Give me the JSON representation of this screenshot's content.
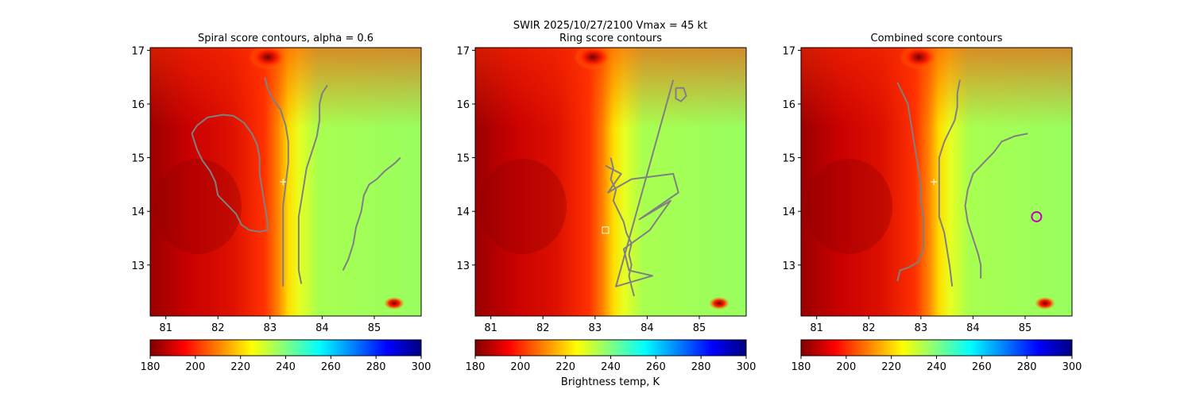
{
  "suptitle": "SWIR  2025/10/27/2100    Vmax = 45 kt",
  "colorbar_label": "Brightness temp, K",
  "colormap": [
    "#800000",
    "#ff0000",
    "#ff8000",
    "#ffff00",
    "#80ff80",
    "#00ffff",
    "#0080ff",
    "#0000ff",
    "#000080"
  ],
  "contour_color": "#808080",
  "chart_data": [
    {
      "type": "heatmap",
      "title": "Spiral score contours, alpha =  0.6",
      "xlim": [
        80.7,
        85.9
      ],
      "ylim": [
        12.05,
        17.05
      ],
      "xticks": [
        "81",
        "82",
        "83",
        "84",
        "85"
      ],
      "yticks": [
        "13",
        "14",
        "15",
        "16",
        "17"
      ],
      "colorbar": {
        "range": [
          180,
          300
        ],
        "ticks": [
          "180",
          "200",
          "220",
          "240",
          "260",
          "280",
          "300"
        ]
      },
      "contours": [
        [
          [
            81.5,
            15.45
          ],
          [
            81.6,
            15.6
          ],
          [
            81.8,
            15.75
          ],
          [
            82.1,
            15.8
          ],
          [
            82.3,
            15.78
          ],
          [
            82.5,
            15.65
          ],
          [
            82.65,
            15.45
          ],
          [
            82.75,
            15.25
          ],
          [
            82.8,
            15.0
          ],
          [
            82.8,
            14.7
          ],
          [
            82.85,
            14.4
          ],
          [
            82.9,
            14.1
          ],
          [
            82.95,
            13.8
          ],
          [
            82.95,
            13.65
          ],
          [
            82.8,
            13.62
          ],
          [
            82.6,
            13.65
          ],
          [
            82.45,
            13.75
          ],
          [
            82.35,
            13.95
          ],
          [
            82.2,
            14.1
          ],
          [
            82.0,
            14.3
          ],
          [
            81.95,
            14.55
          ],
          [
            81.85,
            14.75
          ],
          [
            81.7,
            14.95
          ],
          [
            81.6,
            15.15
          ],
          [
            81.5,
            15.45
          ]
        ],
        [
          [
            82.9,
            16.5
          ],
          [
            82.95,
            16.3
          ],
          [
            83.05,
            16.1
          ],
          [
            83.2,
            15.9
          ],
          [
            83.3,
            15.6
          ],
          [
            83.35,
            15.3
          ],
          [
            83.35,
            14.9
          ],
          [
            83.3,
            14.5
          ],
          [
            83.25,
            14.1
          ],
          [
            83.25,
            13.7
          ],
          [
            83.25,
            13.3
          ],
          [
            83.25,
            12.9
          ],
          [
            83.25,
            12.6
          ]
        ],
        [
          [
            84.1,
            16.35
          ],
          [
            84.0,
            16.2
          ],
          [
            83.95,
            16.0
          ],
          [
            83.95,
            15.7
          ],
          [
            83.9,
            15.4
          ],
          [
            83.8,
            15.1
          ],
          [
            83.7,
            14.8
          ],
          [
            83.65,
            14.5
          ],
          [
            83.6,
            14.2
          ],
          [
            83.55,
            13.9
          ],
          [
            83.55,
            13.6
          ],
          [
            83.55,
            13.2
          ],
          [
            83.55,
            12.9
          ],
          [
            83.6,
            12.65
          ]
        ],
        [
          [
            85.5,
            15.0
          ],
          [
            85.4,
            14.9
          ],
          [
            85.2,
            14.75
          ],
          [
            85.05,
            14.6
          ],
          [
            84.9,
            14.5
          ],
          [
            84.8,
            14.3
          ],
          [
            84.75,
            14.0
          ],
          [
            84.65,
            13.7
          ],
          [
            84.6,
            13.4
          ],
          [
            84.5,
            13.1
          ],
          [
            84.4,
            12.9
          ]
        ]
      ],
      "markers": [
        {
          "shape": "plus",
          "x": 83.25,
          "y": 14.55,
          "color": "#ffffff"
        }
      ]
    },
    {
      "type": "heatmap",
      "title": "Ring score contours",
      "xlim": [
        80.7,
        85.9
      ],
      "ylim": [
        12.05,
        17.05
      ],
      "xticks": [
        "81",
        "82",
        "83",
        "84",
        "85"
      ],
      "yticks": [
        "13",
        "14",
        "15",
        "16",
        "17"
      ],
      "colorbar": {
        "range": [
          180,
          300
        ],
        "ticks": [
          "180",
          "200",
          "220",
          "240",
          "260",
          "280",
          "300"
        ]
      },
      "contours": [
        [
          [
            83.3,
            15.0
          ],
          [
            83.35,
            14.8
          ],
          [
            83.3,
            14.6
          ],
          [
            83.4,
            14.4
          ],
          [
            83.35,
            14.2
          ],
          [
            83.45,
            14.0
          ],
          [
            83.55,
            13.8
          ],
          [
            83.6,
            13.6
          ],
          [
            83.7,
            13.4
          ],
          [
            83.65,
            13.2
          ],
          [
            83.7,
            13.0
          ],
          [
            83.65,
            12.8
          ],
          [
            83.7,
            12.6
          ],
          [
            83.75,
            12.42
          ]
        ],
        [
          [
            84.55,
            16.3
          ],
          [
            84.7,
            16.3
          ],
          [
            84.75,
            16.15
          ],
          [
            84.65,
            16.05
          ],
          [
            84.55,
            16.1
          ],
          [
            84.55,
            16.3
          ]
        ],
        [
          [
            83.2,
            14.85
          ],
          [
            83.5,
            14.7
          ],
          [
            83.25,
            14.35
          ],
          [
            83.7,
            14.6
          ],
          [
            84.5,
            14.7
          ],
          [
            84.6,
            14.35
          ],
          [
            83.85,
            13.85
          ],
          [
            84.45,
            14.2
          ],
          [
            84.05,
            13.65
          ],
          [
            83.55,
            13.3
          ],
          [
            83.65,
            12.9
          ],
          [
            84.1,
            12.8
          ],
          [
            83.4,
            12.6
          ],
          [
            84.5,
            16.45
          ]
        ]
      ],
      "markers": [
        {
          "shape": "square",
          "x": 83.2,
          "y": 13.65,
          "color": "#ffffff"
        }
      ]
    },
    {
      "type": "heatmap",
      "title": "Combined score contours",
      "xlim": [
        80.7,
        85.9
      ],
      "ylim": [
        12.05,
        17.05
      ],
      "xticks": [
        "81",
        "82",
        "83",
        "84",
        "85"
      ],
      "yticks": [
        "13",
        "14",
        "15",
        "16",
        "17"
      ],
      "colorbar": {
        "range": [
          180,
          300
        ],
        "ticks": [
          "180",
          "200",
          "220",
          "240",
          "260",
          "280",
          "300"
        ]
      },
      "contours": [
        [
          [
            82.55,
            16.4
          ],
          [
            82.65,
            16.2
          ],
          [
            82.75,
            16.0
          ],
          [
            82.8,
            15.7
          ],
          [
            82.85,
            15.4
          ],
          [
            82.9,
            15.1
          ],
          [
            82.95,
            14.8
          ],
          [
            83.0,
            14.5
          ],
          [
            83.0,
            14.2
          ],
          [
            83.05,
            13.9
          ],
          [
            83.05,
            13.6
          ],
          [
            83.05,
            13.3
          ],
          [
            82.95,
            13.05
          ],
          [
            82.75,
            12.95
          ],
          [
            82.6,
            12.9
          ],
          [
            82.55,
            12.7
          ]
        ],
        [
          [
            83.75,
            16.45
          ],
          [
            83.7,
            16.2
          ],
          [
            83.7,
            15.95
          ],
          [
            83.65,
            15.7
          ],
          [
            83.55,
            15.5
          ],
          [
            83.45,
            15.3
          ],
          [
            83.35,
            15.0
          ],
          [
            83.35,
            14.7
          ],
          [
            83.35,
            14.3
          ],
          [
            83.35,
            13.9
          ],
          [
            83.45,
            13.6
          ],
          [
            83.5,
            13.3
          ],
          [
            83.55,
            13.0
          ],
          [
            83.6,
            12.6
          ]
        ],
        [
          [
            85.05,
            15.45
          ],
          [
            84.8,
            15.4
          ],
          [
            84.55,
            15.3
          ],
          [
            84.4,
            15.1
          ],
          [
            84.2,
            14.9
          ],
          [
            84.0,
            14.7
          ],
          [
            83.9,
            14.4
          ],
          [
            83.85,
            14.1
          ],
          [
            83.9,
            13.8
          ],
          [
            84.0,
            13.5
          ],
          [
            84.1,
            13.2
          ],
          [
            84.15,
            13.0
          ],
          [
            84.15,
            12.75
          ]
        ]
      ],
      "markers": [
        {
          "shape": "plus",
          "x": 83.25,
          "y": 14.55,
          "color": "#ffffff"
        },
        {
          "shape": "circle",
          "x": 85.22,
          "y": 13.9,
          "color": "#c000c0"
        }
      ]
    }
  ]
}
